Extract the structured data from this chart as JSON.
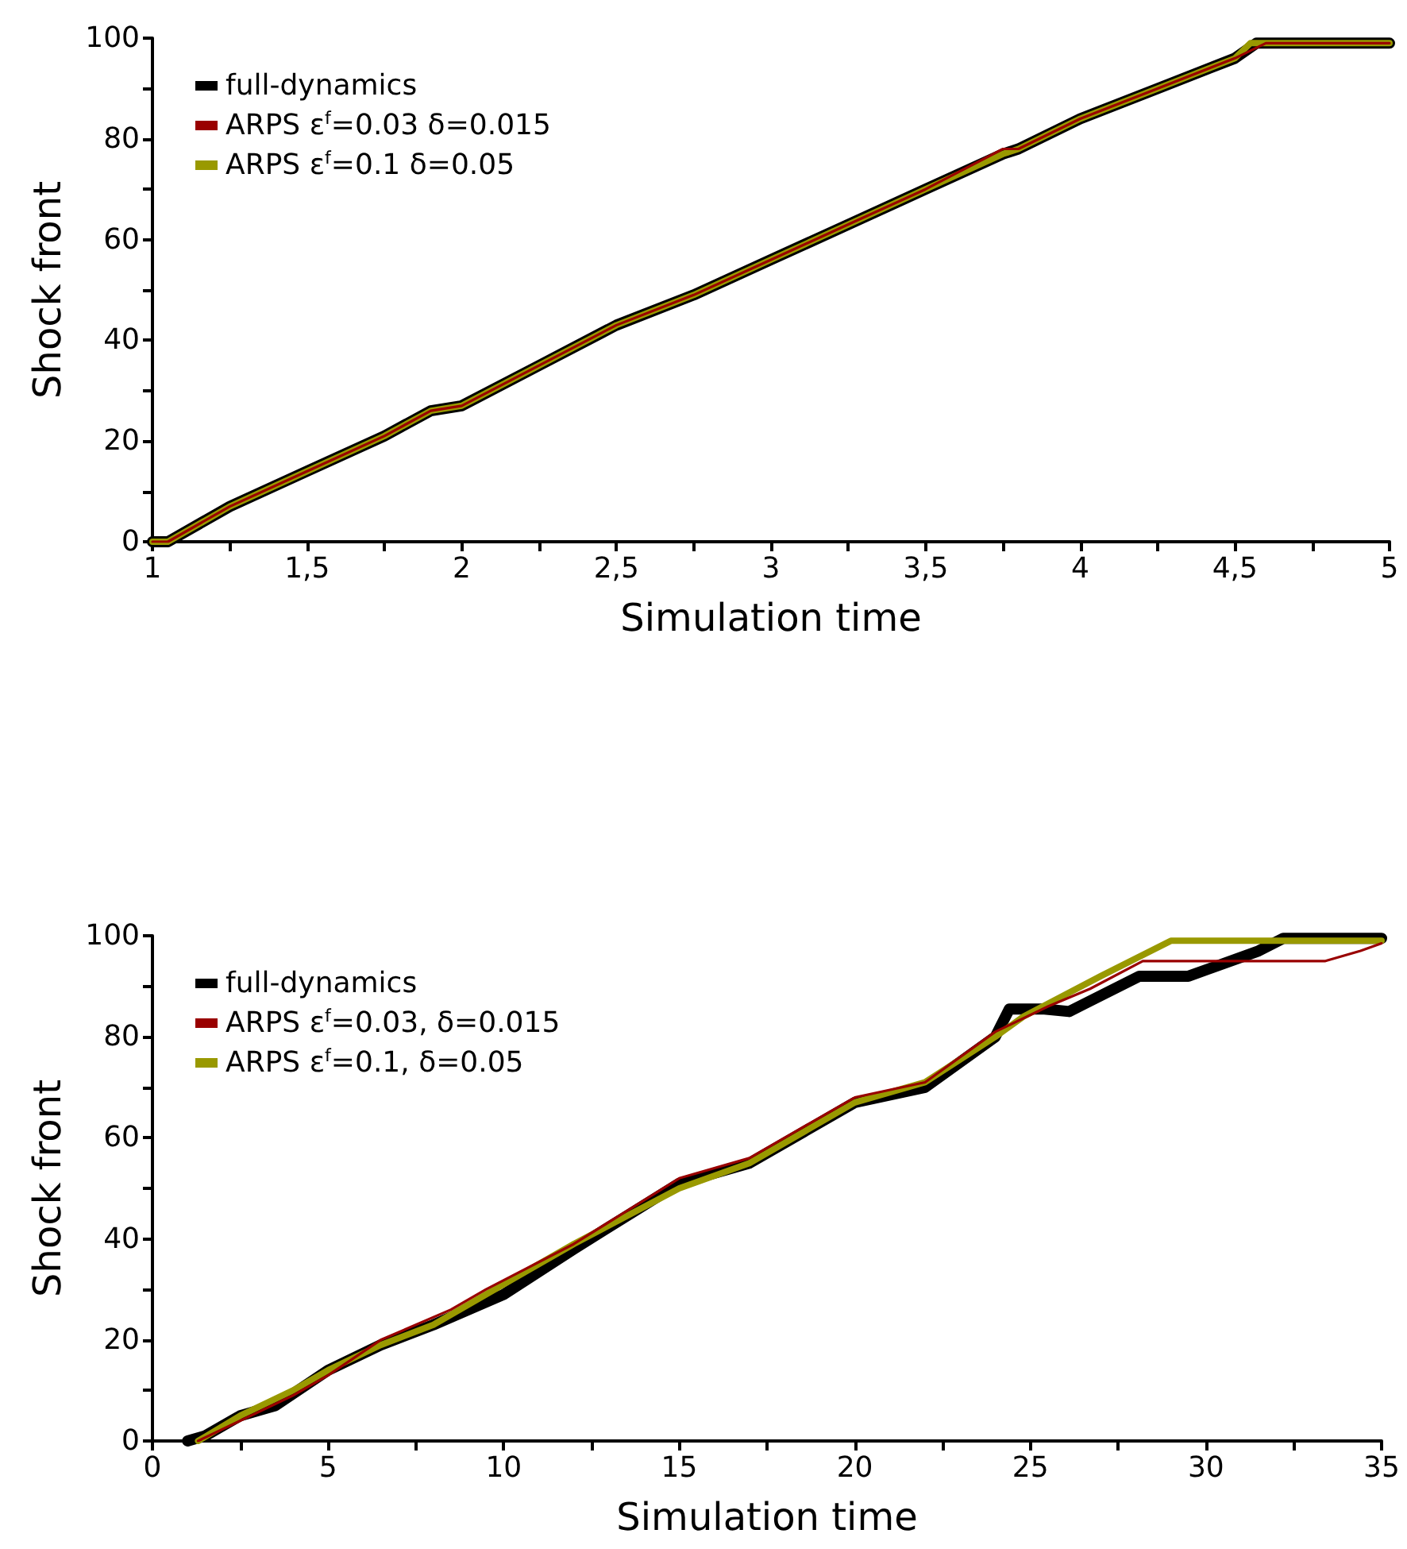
{
  "chart_data": [
    {
      "type": "line",
      "xlabel": "Simulation time",
      "ylabel": "Shock front",
      "legend": "top left",
      "grid": false,
      "marker": "none",
      "line_style": "solid",
      "xlim": [
        1,
        5
      ],
      "xticks": [
        1,
        {
          "value": 1.25,
          "label": null
        },
        {
          "value": 1.5,
          "label": "1,5"
        },
        {
          "value": 1.75,
          "label": null
        },
        2,
        {
          "value": 2.25,
          "label": null
        },
        {
          "value": 2.5,
          "label": "2,5"
        },
        {
          "value": 2.75,
          "label": null
        },
        3,
        {
          "value": 3.25,
          "label": null
        },
        {
          "value": 3.5,
          "label": "3,5"
        },
        {
          "value": 3.75,
          "label": null
        },
        4,
        {
          "value": 4.25,
          "label": null
        },
        {
          "value": 4.5,
          "label": "4,5"
        },
        {
          "value": 4.75,
          "label": null
        },
        5
      ],
      "ylim": [
        0,
        100
      ],
      "yticks": [
        0,
        {
          "value": 10,
          "label": null
        },
        20,
        {
          "value": 30,
          "label": null
        },
        40,
        {
          "value": 50,
          "label": null
        },
        60,
        {
          "value": 70,
          "label": null
        },
        80,
        {
          "value": 90,
          "label": null
        },
        100
      ],
      "series": [
        {
          "name": "full-dynamics",
          "color": "#000000",
          "x": [
            1,
            1.05,
            1.25,
            1.5,
            1.75,
            1.9,
            2,
            2.25,
            2.5,
            2.75,
            3,
            3.25,
            3.5,
            3.75,
            3.8,
            4,
            4.25,
            4.5,
            4.57,
            5
          ],
          "values": [
            0,
            0,
            7,
            14,
            21,
            26,
            27,
            35,
            43,
            49,
            56,
            63,
            70,
            77,
            78,
            84,
            90,
            96,
            99,
            99
          ]
        },
        {
          "name": "ARPS ε$^{f}$=0.03 δ=0.015",
          "color": "#990000",
          "x": [
            1,
            1.05,
            1.25,
            1.5,
            1.75,
            1.9,
            2,
            2.25,
            2.5,
            2.75,
            3,
            3.25,
            3.5,
            3.75,
            3.8,
            4,
            4.25,
            4.5,
            4.6,
            5
          ],
          "values": [
            0,
            0,
            7,
            14,
            21,
            26,
            27,
            35,
            43,
            49,
            56,
            63,
            70,
            78,
            78,
            84,
            90,
            96,
            99,
            99
          ]
        },
        {
          "name": "ARPS ε$^{f}$=0.1 δ=0.05",
          "color": "#999900",
          "x": [
            1,
            1.05,
            1.25,
            1.5,
            1.75,
            1.9,
            2,
            2.25,
            2.5,
            2.75,
            3,
            3.25,
            3.5,
            3.75,
            3.8,
            4,
            4.25,
            4.5,
            4.55,
            5
          ],
          "values": [
            0,
            0,
            7,
            14,
            21,
            26,
            27,
            35,
            43,
            49,
            56,
            63,
            70,
            77,
            78,
            84,
            90,
            96,
            99,
            99
          ]
        }
      ]
    },
    {
      "type": "line",
      "xlabel": "Simulation time",
      "ylabel": "Shock front",
      "legend": "top left",
      "grid": false,
      "marker": "none",
      "line_style": "solid",
      "xlim": [
        0,
        35
      ],
      "xticks": [
        0,
        {
          "value": 2.5,
          "label": null
        },
        5,
        {
          "value": 7.5,
          "label": null
        },
        10,
        {
          "value": 12.5,
          "label": null
        },
        15,
        {
          "value": 17.5,
          "label": null
        },
        20,
        {
          "value": 22.5,
          "label": null
        },
        25,
        {
          "value": 27.5,
          "label": null
        },
        30,
        {
          "value": 32.5,
          "label": null
        },
        35
      ],
      "ylim": [
        0,
        100
      ],
      "yticks": [
        0,
        {
          "value": 10,
          "label": null
        },
        20,
        {
          "value": 30,
          "label": null
        },
        40,
        {
          "value": 50,
          "label": null
        },
        60,
        {
          "value": 70,
          "label": null
        },
        80,
        {
          "value": 90,
          "label": null
        },
        100
      ],
      "series": [
        {
          "name": "full-dynamics",
          "color": "#000000",
          "x": [
            1,
            1.5,
            2.5,
            3.5,
            5,
            6.5,
            8,
            10,
            12,
            15,
            17,
            20,
            22,
            24,
            24.4,
            25.4,
            26.1,
            28.1,
            29.5,
            31.5,
            32.2,
            35
          ],
          "values": [
            0,
            1,
            5,
            7,
            14,
            19,
            23,
            29,
            38,
            51,
            55,
            67,
            70,
            80,
            85.5,
            85.5,
            85,
            92,
            92,
            97,
            99.5,
            99.5
          ]
        },
        {
          "name": "ARPS ε$^{f}$=0.03, δ=0.015",
          "color": "#990000",
          "x": [
            1.3,
            2.5,
            4,
            5,
            6.5,
            8.5,
            9.5,
            12,
            15,
            17,
            20,
            22,
            24,
            25.5,
            26.7,
            28.2,
            33.4,
            34.4,
            35
          ],
          "values": [
            0,
            4,
            9,
            13,
            20,
            26,
            30,
            39,
            52,
            56,
            68,
            71,
            81,
            86,
            89.5,
            95,
            95,
            97,
            98.5
          ]
        },
        {
          "name": "ARPS ε$^{f}$=0.1, δ=0.05",
          "color": "#999900",
          "x": [
            1.3,
            2.5,
            4,
            5,
            6.5,
            8,
            10,
            12,
            15,
            17,
            20,
            22,
            24,
            24.8,
            27,
            29,
            35
          ],
          "values": [
            0,
            5,
            10,
            14,
            19,
            23,
            31,
            39,
            50,
            55,
            67,
            71,
            80,
            84,
            92,
            99,
            99
          ]
        }
      ]
    }
  ]
}
